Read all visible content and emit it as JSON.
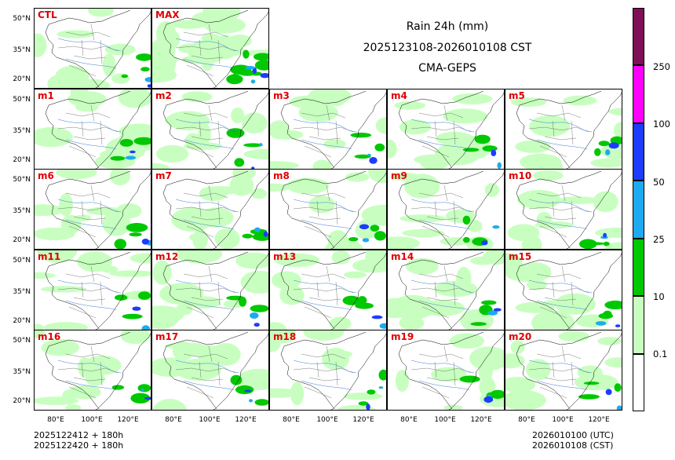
{
  "title": {
    "line1": "Rain 24h (mm)",
    "line2": "2025123108-2026010108 CST",
    "line3": "CMA-GEPS"
  },
  "panels": [
    "CTL",
    "MAX",
    "m1",
    "m2",
    "m3",
    "m4",
    "m5",
    "m6",
    "m7",
    "m8",
    "m9",
    "m10",
    "m11",
    "m12",
    "m13",
    "m14",
    "m15",
    "m16",
    "m17",
    "m18",
    "m19",
    "m20"
  ],
  "lat_labels": [
    "50°N",
    "35°N",
    "20°N"
  ],
  "lon_labels": [
    "80°E",
    "100°E",
    "120°E"
  ],
  "colorbar": {
    "ticks": [
      "0.1",
      "10",
      "25",
      "50",
      "100",
      "250"
    ],
    "colors": [
      "#ffffff",
      "#c8ffc0",
      "#00c800",
      "#1eaaf0",
      "#1e3cff",
      "#ff00ff",
      "#800f55"
    ]
  },
  "footer": {
    "left_line1": "2025122412 + 180h",
    "left_line2": "2025122420 + 180h",
    "right_line1": "2026010100 (UTC)",
    "right_line2": "2026010108 (CST)"
  }
}
